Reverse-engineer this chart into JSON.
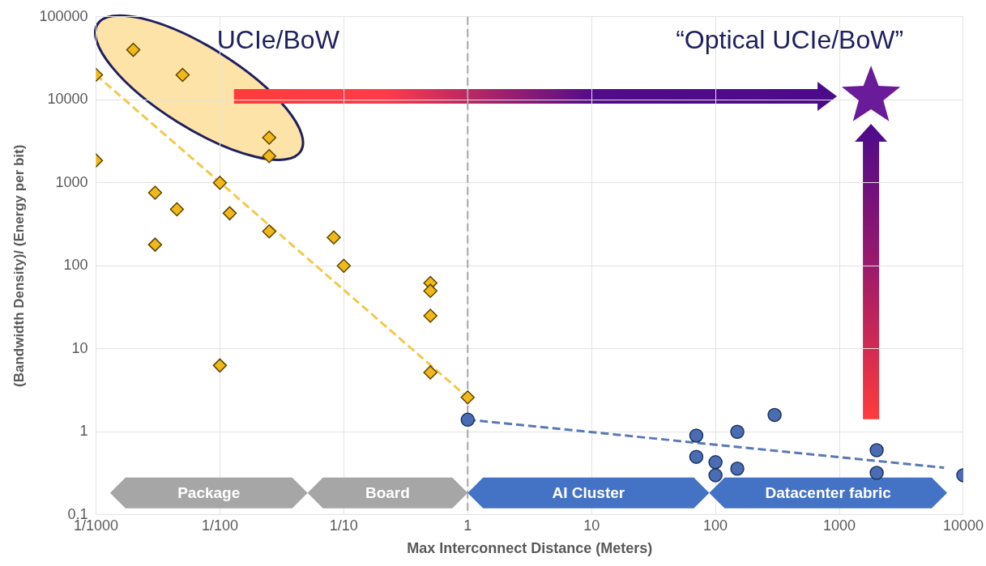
{
  "chart_data": {
    "type": "scatter",
    "xlabel": "Max Interconnect Distance (Meters)",
    "ylabel": "(Bandwidth Density)/ (Energy per bit)",
    "log": "xy",
    "grid": true,
    "xlim": [
      0.001,
      10000
    ],
    "xticks": [
      {
        "value": 0.001,
        "label": "1/1000"
      },
      {
        "value": 0.01,
        "label": "1/100"
      },
      {
        "value": 0.1,
        "label": "1/10"
      },
      1,
      10,
      100,
      1000,
      10000
    ],
    "ylim": [
      0.1,
      100000
    ],
    "yticks": [
      0.1,
      1,
      10,
      100,
      1000,
      10000,
      100000
    ],
    "series": [
      {
        "type": "scatter",
        "marker": "diamond",
        "color": "#f0b919",
        "x": [
          0.001,
          0.002,
          0.005,
          0.025,
          0.025,
          0.001,
          0.01,
          0.003,
          0.0045,
          0.012,
          0.003,
          0.025,
          0.083,
          0.1,
          0.01,
          0.5,
          0.5,
          0.5,
          0.5,
          1
        ],
        "values": [
          20000,
          40000,
          20000,
          3500,
          2100,
          1860,
          1000,
          760,
          480,
          430,
          180,
          260,
          220,
          100,
          6.3,
          62,
          50,
          25,
          5.2,
          2.6
        ]
      },
      {
        "type": "line",
        "marker": "none",
        "line_style": "dashed",
        "color": "#f2c94c",
        "x": [
          0.001,
          1
        ],
        "values": [
          20000,
          2.6
        ]
      },
      {
        "type": "scatter",
        "marker": "circle",
        "color": "#4a6cb3",
        "x": [
          1,
          70,
          70,
          100,
          100,
          150,
          150,
          300,
          2000,
          2000,
          10000
        ],
        "values": [
          1.4,
          0.9,
          0.5,
          0.43,
          0.3,
          1,
          0.36,
          1.6,
          0.6,
          0.32,
          0.3
        ]
      },
      {
        "type": "line",
        "marker": "none",
        "line_style": "dashed",
        "color": "#5a78b8",
        "x": [
          1,
          7000
        ],
        "values": [
          1.4,
          0.37
        ]
      },
      {
        "type": "scatter",
        "marker": "star",
        "color": "#6a1b9a",
        "x": [
          1800
        ],
        "values": [
          11000
        ]
      }
    ],
    "ref_lines": [
      {
        "axis": "x",
        "value": 1,
        "color": "#a6a6a6",
        "line_style": "dashed"
      }
    ],
    "bands": [
      {
        "axis": "x",
        "from": 0.0013,
        "to": 0.051,
        "label": "Package",
        "color": "#a6a6a6"
      },
      {
        "axis": "x",
        "from": 0.051,
        "to": 1,
        "label": "Board",
        "color": "#a6a6a6"
      },
      {
        "axis": "x",
        "from": 1,
        "to": 89,
        "label": "AI Cluster",
        "color": "#4472c4"
      },
      {
        "axis": "x",
        "from": 89,
        "to": 7400,
        "label": "Datacenter fabric",
        "color": "#4472c4"
      }
    ],
    "annotations": [
      "UCIe/BoW",
      "“Optical UCIe/BoW”"
    ]
  }
}
